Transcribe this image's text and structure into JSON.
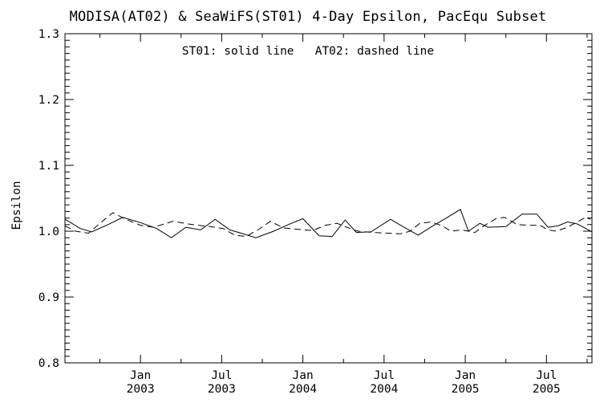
{
  "colors": {
    "foreground": "#000000",
    "background": "#ffffff"
  },
  "chart_data": {
    "type": "line",
    "title": "MODISA(AT02) & SeaWiFS(ST01) 4-Day Epsilon, PacEqu Subset",
    "annotation": "ST01: solid line   AT02: dashed line",
    "xlabel": "",
    "ylabel": "Epsilon",
    "xlim": [
      2002.535,
      2005.78
    ],
    "ylim": [
      0.8,
      1.3
    ],
    "grid": false,
    "x_major_ticks": [
      {
        "value": 2003.0,
        "month": "Jan",
        "year": "2003"
      },
      {
        "value": 2003.5,
        "month": "Jul",
        "year": "2003"
      },
      {
        "value": 2004.0,
        "month": "Jan",
        "year": "2004"
      },
      {
        "value": 2004.5,
        "month": "Jul",
        "year": "2004"
      },
      {
        "value": 2005.0,
        "month": "Jan",
        "year": "2005"
      },
      {
        "value": 2005.5,
        "month": "Jul",
        "year": "2005"
      }
    ],
    "x_minor_ticks": [
      2002.75,
      2003.25,
      2003.75,
      2004.25,
      2004.75,
      2005.25,
      2005.75
    ],
    "y_major_ticks": [
      {
        "value": 0.8,
        "label": "0.8"
      },
      {
        "value": 0.9,
        "label": "0.9"
      },
      {
        "value": 1.0,
        "label": "1.0"
      },
      {
        "value": 1.1,
        "label": "1.1"
      },
      {
        "value": 1.2,
        "label": "1.2"
      },
      {
        "value": 1.3,
        "label": "1.3"
      }
    ],
    "y_minor_interval": 0.01,
    "series": [
      {
        "name": "ST01",
        "style": "solid",
        "x": [
          2002.536,
          2002.63,
          2002.7,
          2002.8,
          2002.89,
          2003.0,
          2003.1,
          2003.19,
          2003.28,
          2003.37,
          2003.46,
          2003.55,
          2003.62,
          2003.71,
          2003.82,
          2003.91,
          2004.0,
          2004.1,
          2004.18,
          2004.26,
          2004.33,
          2004.42,
          2004.54,
          2004.63,
          2004.71,
          2004.8,
          2004.87,
          2004.97,
          2005.02,
          2005.09,
          2005.14,
          2005.25,
          2005.35,
          2005.44,
          2005.51,
          2005.57,
          2005.63,
          2005.69,
          2005.78
        ],
        "y": [
          1.018,
          1.004,
          0.999,
          1.01,
          1.021,
          1.013,
          1.004,
          0.99,
          1.006,
          1.002,
          1.018,
          1.002,
          0.997,
          0.99,
          1.0,
          1.01,
          1.019,
          0.993,
          0.992,
          1.017,
          0.998,
          0.999,
          1.018,
          1.005,
          0.994,
          1.008,
          1.018,
          1.033,
          1.0,
          1.012,
          1.006,
          1.007,
          1.026,
          1.026,
          1.006,
          1.008,
          1.014,
          1.011,
          0.999
        ]
      },
      {
        "name": "AT02",
        "style": "dashed",
        "x": [
          2002.536,
          2002.6,
          2002.68,
          2002.75,
          2002.83,
          2002.91,
          2003.0,
          2003.08,
          2003.2,
          2003.32,
          2003.43,
          2003.51,
          2003.58,
          2003.65,
          2003.73,
          2003.8,
          2003.88,
          2003.96,
          2004.06,
          2004.14,
          2004.21,
          2004.27,
          2004.34,
          2004.43,
          2004.52,
          2004.6,
          2004.66,
          2004.72,
          2004.79,
          2004.86,
          2004.91,
          2004.98,
          2005.06,
          2005.12,
          2005.19,
          2005.24,
          2005.32,
          2005.4,
          2005.46,
          2005.51,
          2005.56,
          2005.63,
          2005.69,
          2005.74,
          2005.77
        ],
        "y": [
          1.008,
          1.0,
          0.997,
          1.012,
          1.028,
          1.018,
          1.009,
          1.006,
          1.015,
          1.01,
          1.007,
          1.004,
          0.994,
          0.992,
          1.003,
          1.015,
          1.005,
          1.003,
          1.001,
          1.009,
          1.012,
          1.006,
          1.0,
          0.998,
          0.997,
          0.996,
          1.0,
          1.012,
          1.014,
          1.008,
          1.0,
          1.002,
          0.998,
          1.009,
          1.019,
          1.021,
          1.01,
          1.009,
          1.009,
          1.002,
          1.0,
          1.006,
          1.014,
          1.021,
          1.018
        ]
      }
    ]
  }
}
